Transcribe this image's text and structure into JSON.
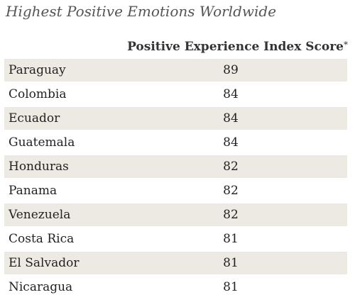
{
  "chart_data": {
    "type": "table",
    "title": "Highest Positive Emotions Worldwide",
    "column_header": "Positive Experience Index Score",
    "column_header_mark": "*",
    "categories": [
      "Paraguay",
      "Colombia",
      "Ecuador",
      "Guatemala",
      "Honduras",
      "Panama",
      "Venezuela",
      "Costa Rica",
      "El Salvador",
      "Nicaragua"
    ],
    "values": [
      89,
      84,
      84,
      84,
      82,
      82,
      82,
      81,
      81,
      81
    ]
  },
  "colors": {
    "row_shade": "#edeae3",
    "title": "#555555",
    "text": "#222222"
  }
}
